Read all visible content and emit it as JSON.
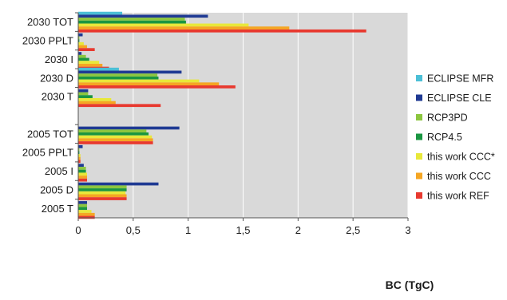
{
  "chart_data": {
    "type": "bar",
    "orientation": "horizontal",
    "xlabel": "BC (TgC)",
    "ylabel": "",
    "xlim": [
      0,
      3
    ],
    "x_ticks": [
      "0",
      "0,5",
      "1",
      "1,5",
      "2",
      "2,5",
      "3"
    ],
    "grid": "vertical",
    "legend_position": "right",
    "categories": [
      "2030 TOT",
      "2030 PPLT",
      "2030 I",
      "2030 D",
      "2030 T",
      "2005 TOT",
      "2005 PPLT",
      "2005 I",
      "2005 D",
      "2005 T"
    ],
    "series": [
      {
        "name": "ECLIPSE MFR",
        "color": "#4bbfd6",
        "values": [
          0.4,
          null,
          null,
          0.37,
          null,
          null,
          null,
          null,
          null,
          null
        ]
      },
      {
        "name": "ECLIPSE CLE",
        "color": "#1f3a93",
        "values": [
          1.18,
          0.04,
          0.03,
          0.94,
          0.09,
          0.92,
          0.04,
          0.05,
          0.73,
          0.08
        ]
      },
      {
        "name": "RCP3PD",
        "color": "#8cc63f",
        "values": [
          0.97,
          0.01,
          0.07,
          0.72,
          0.09,
          0.62,
          0.01,
          0.07,
          0.44,
          0.08
        ]
      },
      {
        "name": "RCP4.5",
        "color": "#1a9641",
        "values": [
          0.98,
          0.01,
          0.1,
          0.73,
          0.13,
          0.64,
          0.01,
          0.07,
          0.44,
          0.08
        ]
      },
      {
        "name": "this work CCC*",
        "color": "#e8e83a",
        "values": [
          1.55,
          0.05,
          0.19,
          1.1,
          0.3,
          0.67,
          0.02,
          0.08,
          0.43,
          0.12
        ]
      },
      {
        "name": "this work CCC",
        "color": "#f5a623",
        "values": [
          1.92,
          0.08,
          0.22,
          1.28,
          0.34,
          0.68,
          0.02,
          0.08,
          0.44,
          0.15
        ]
      },
      {
        "name": "this work REF",
        "color": "#e8392f",
        "values": [
          2.62,
          0.15,
          0.28,
          1.43,
          0.75,
          0.68,
          0.02,
          0.08,
          0.44,
          0.15
        ]
      }
    ]
  }
}
